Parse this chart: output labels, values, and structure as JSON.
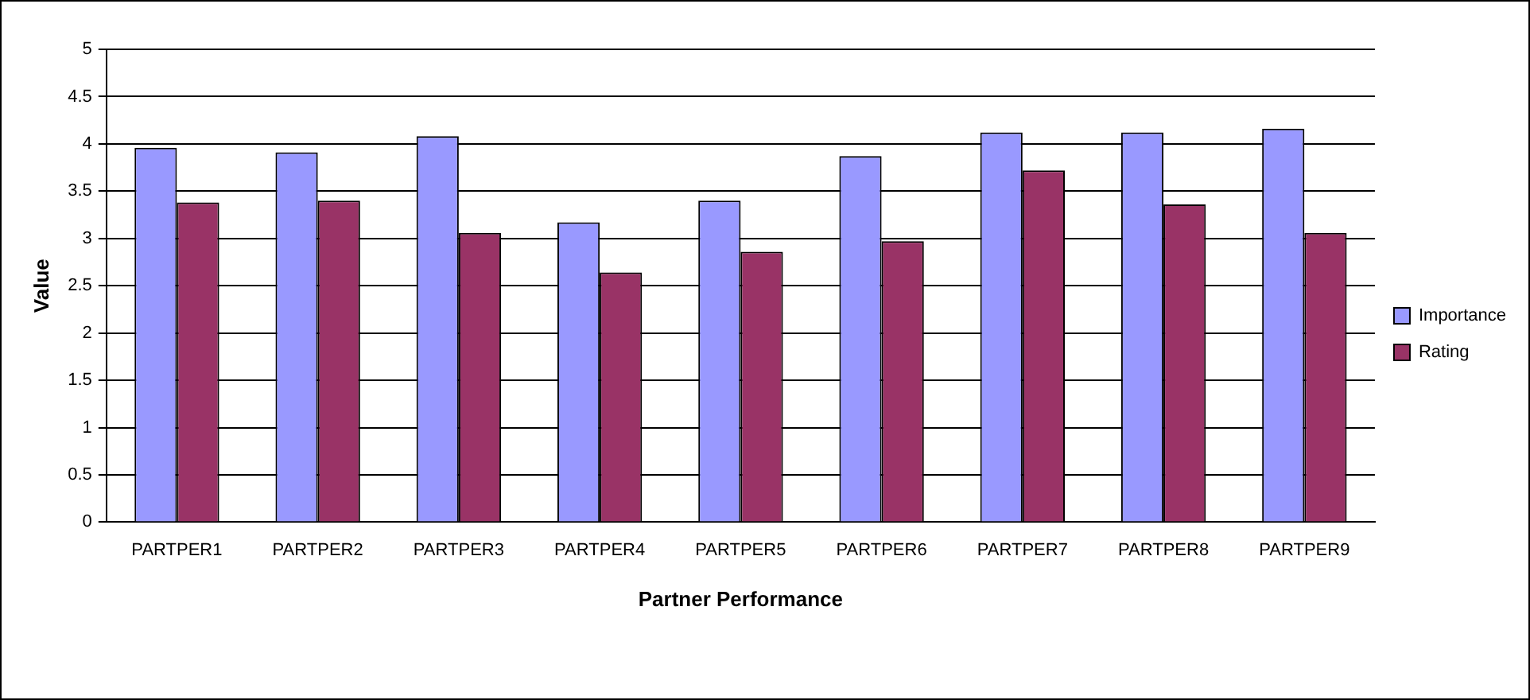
{
  "chart_data": {
    "type": "bar",
    "xlabel": "Partner Performance",
    "ylabel": "Value",
    "categories": [
      "PARTPER1",
      "PARTPER2",
      "PARTPER3",
      "PARTPER4",
      "PARTPER5",
      "PARTPER6",
      "PARTPER7",
      "PARTPER8",
      "PARTPER9"
    ],
    "series": [
      {
        "name": "Importance",
        "color": "#9999ff",
        "values": [
          3.96,
          3.91,
          4.08,
          3.17,
          3.4,
          3.87,
          4.12,
          4.12,
          4.16
        ]
      },
      {
        "name": "Rating",
        "color": "#993366",
        "values": [
          3.38,
          3.4,
          3.06,
          2.64,
          2.86,
          2.97,
          3.72,
          3.36,
          3.06
        ]
      }
    ],
    "ylim": [
      0,
      5
    ],
    "yticks": [
      0,
      0.5,
      1,
      1.5,
      2,
      2.5,
      3,
      3.5,
      4,
      4.5,
      5
    ],
    "grid": "y",
    "legend": "right"
  }
}
